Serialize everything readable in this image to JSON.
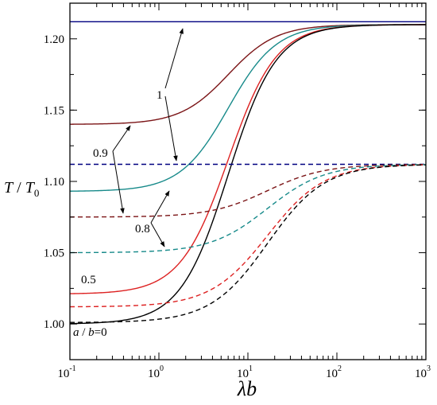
{
  "chart_data": {
    "type": "line",
    "xscale": "log",
    "xlim": [
      0.1,
      1000
    ],
    "ylim": [
      0.975,
      1.225
    ],
    "xlabel": {
      "sym": "λ",
      "var": "b"
    },
    "ylabel": {
      "num": "T",
      "slash": " / ",
      "den": "T",
      "den_sub": "0"
    },
    "xticks": [
      {
        "value": 0.1,
        "base": "10",
        "exp": "-1"
      },
      {
        "value": 1,
        "base": "10",
        "exp": "0"
      },
      {
        "value": 10,
        "base": "10",
        "exp": "1"
      },
      {
        "value": 100,
        "base": "10",
        "exp": "2"
      },
      {
        "value": 1000,
        "base": "10",
        "exp": "3"
      }
    ],
    "yticks": [
      {
        "value": 1.0,
        "label": "1.00"
      },
      {
        "value": 1.05,
        "label": "1.05"
      },
      {
        "value": 1.1,
        "label": "1.10"
      },
      {
        "value": 1.15,
        "label": "1.15"
      },
      {
        "value": 1.2,
        "label": "1.20"
      }
    ],
    "series": [
      {
        "color": "#000080",
        "dash": false,
        "low": 1.212,
        "high": 1.212
      },
      {
        "color": "#7b1416",
        "dash": false,
        "low": 1.14,
        "high": 1.21
      },
      {
        "color": "#178a8a",
        "dash": false,
        "low": 1.093,
        "high": 1.21
      },
      {
        "color": "#dd2222",
        "dash": false,
        "low": 1.021,
        "high": 1.21
      },
      {
        "color": "#000000",
        "dash": false,
        "low": 1.0,
        "high": 1.21
      },
      {
        "color": "#000080",
        "dash": true,
        "low": 1.112,
        "high": 1.112
      },
      {
        "color": "#7b1416",
        "dash": true,
        "low": 1.075,
        "high": 1.112
      },
      {
        "color": "#178a8a",
        "dash": true,
        "low": 1.05,
        "high": 1.112
      },
      {
        "color": "#dd2222",
        "dash": true,
        "low": 1.012,
        "high": 1.112
      },
      {
        "color": "#000000",
        "dash": true,
        "low": 1.001,
        "high": 1.112
      }
    ],
    "annotations": {
      "label_1": "1",
      "label_09": "0.9",
      "label_08": "0.8",
      "label_05": "0.5",
      "label_ab": {
        "a": "a",
        "slash": " / ",
        "b": "b",
        "eq": "=0"
      }
    }
  }
}
